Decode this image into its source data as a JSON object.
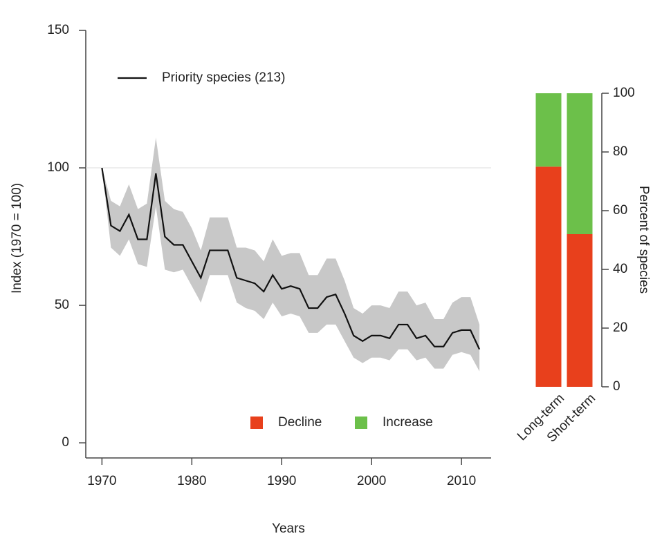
{
  "chart_data": [
    {
      "type": "line",
      "x_label": "Years",
      "y_label": "Index (1970 = 100)",
      "x": [
        1970,
        1971,
        1972,
        1973,
        1974,
        1975,
        1976,
        1977,
        1978,
        1979,
        1980,
        1981,
        1982,
        1983,
        1984,
        1985,
        1986,
        1987,
        1988,
        1989,
        1990,
        1991,
        1992,
        1993,
        1994,
        1995,
        1996,
        1997,
        1998,
        1999,
        2000,
        2001,
        2002,
        2003,
        2004,
        2005,
        2006,
        2007,
        2008,
        2009,
        2010,
        2011,
        2012
      ],
      "series": [
        {
          "name": "Priority species (213)",
          "color": "#111111",
          "band_color": "#c8c8c8",
          "values": [
            100,
            79,
            77,
            83,
            74,
            74,
            98,
            75,
            72,
            72,
            66,
            60,
            70,
            70,
            70,
            60,
            59,
            58,
            55,
            61,
            56,
            57,
            56,
            49,
            49,
            53,
            54,
            47,
            39,
            37,
            39,
            39,
            38,
            43,
            43,
            38,
            39,
            35,
            35,
            40,
            41,
            41,
            34
          ],
          "upper": [
            100,
            88,
            86,
            94,
            85,
            87,
            111,
            88,
            85,
            84,
            78,
            70,
            82,
            82,
            82,
            71,
            71,
            70,
            66,
            74,
            68,
            69,
            69,
            61,
            61,
            67,
            67,
            59,
            49,
            47,
            50,
            50,
            49,
            55,
            55,
            50,
            51,
            45,
            45,
            51,
            53,
            53,
            43
          ],
          "lower": [
            100,
            71,
            68,
            74,
            65,
            64,
            86,
            63,
            62,
            63,
            57,
            51,
            61,
            61,
            61,
            51,
            49,
            48,
            45,
            51,
            46,
            47,
            46,
            40,
            40,
            43,
            43,
            37,
            31,
            29,
            31,
            31,
            30,
            34,
            34,
            30,
            31,
            27,
            27,
            32,
            33,
            32,
            26
          ]
        }
      ],
      "reference_line": 100,
      "xlim": [
        1968.2,
        2013.3
      ],
      "xticks": [
        1970,
        1980,
        1990,
        2000,
        2010
      ],
      "ylim": [
        -5.5,
        150
      ],
      "yticks": [
        0,
        50,
        100,
        150
      ],
      "legend": "top-left"
    },
    {
      "type": "bar",
      "stacked": true,
      "y_label": "Percent of species",
      "categories": [
        "Long-term",
        "Short-term"
      ],
      "series": [
        {
          "name": "Decline",
          "color": "#e8401c",
          "values": [
            75,
            52
          ]
        },
        {
          "name": "Increase",
          "color": "#6cc04a",
          "values": [
            25,
            48
          ]
        }
      ],
      "ylim": [
        0,
        100
      ],
      "yticks": [
        0,
        20,
        40,
        60,
        80,
        100
      ]
    }
  ]
}
